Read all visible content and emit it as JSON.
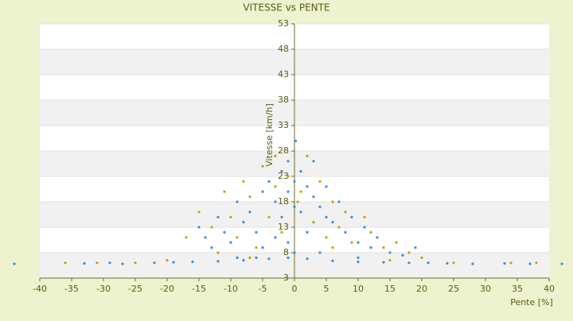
{
  "chart_data": {
    "type": "scatter",
    "title": "VITESSE vs PENTE",
    "x_label": "Pente [%]",
    "y_label": "Vitesse [km/h]",
    "xlim": [
      -40,
      40
    ],
    "xticks": [
      -40,
      -35,
      -30,
      -25,
      -20,
      -15,
      -10,
      -5,
      0,
      5,
      10,
      15,
      20,
      25,
      30,
      35,
      40
    ],
    "ylim": [
      3,
      53
    ],
    "yticks": [
      3,
      8,
      13,
      18,
      23,
      28,
      33,
      38,
      43,
      48,
      53
    ],
    "grid": true,
    "series": [
      {
        "color": "#b8a800",
        "x": [
          -17,
          -15,
          -13,
          -12,
          -11,
          -10,
          -9,
          -8,
          -7,
          -6,
          -5,
          -4,
          -3,
          -2,
          -1,
          1,
          2,
          3,
          4,
          5,
          6,
          7,
          8,
          9,
          11,
          12,
          14,
          16,
          18,
          20,
          -20,
          -25,
          -31,
          25,
          34,
          38,
          -36,
          15,
          -3,
          0.5,
          6,
          -7
        ],
        "values": [
          11,
          16,
          13,
          8,
          20,
          15,
          11,
          22,
          19,
          9,
          25,
          15,
          21,
          12,
          23,
          20,
          27,
          14,
          22,
          11,
          18,
          13,
          16,
          10,
          15,
          12,
          9,
          10,
          8,
          7,
          6.5,
          6,
          6,
          6,
          6,
          6,
          6,
          6.5,
          27,
          18,
          9,
          7
        ]
      },
      {
        "color": "#3a8fd6",
        "x": [
          -44,
          -33,
          -29,
          -27,
          -22,
          -19,
          -16,
          -12,
          -8,
          -4,
          -1,
          2,
          6,
          10,
          14,
          18,
          21,
          24,
          28,
          33,
          37,
          42,
          -15,
          -14,
          -13,
          -12,
          -11,
          -10,
          -9,
          -8,
          -7,
          -6,
          -5,
          -5,
          -4,
          -3,
          -3,
          -2,
          -2,
          -1,
          -1,
          -1,
          0,
          0,
          0,
          1,
          1,
          2,
          2,
          3,
          3,
          4,
          5,
          5,
          6,
          7,
          8,
          9,
          10,
          11,
          12,
          13,
          15,
          17,
          19,
          0.2,
          -6,
          4,
          -9,
          10
        ],
        "values": [
          5.8,
          5.9,
          6,
          5.8,
          6,
          6.1,
          6.2,
          6.3,
          6.5,
          6.8,
          7,
          6.8,
          6.4,
          6.2,
          6.1,
          6,
          6,
          5.9,
          5.8,
          5.9,
          5.8,
          5.8,
          13,
          11,
          9,
          15,
          12,
          10,
          18,
          14,
          16,
          12,
          20,
          9,
          22,
          18,
          11,
          24,
          15,
          26,
          20,
          10,
          22,
          17,
          8,
          24,
          16,
          21,
          12,
          19,
          26,
          17,
          15,
          21,
          14,
          18,
          12,
          15,
          10,
          13,
          9,
          11,
          8,
          7.5,
          9,
          30,
          7,
          8,
          7,
          7
        ]
      }
    ]
  }
}
